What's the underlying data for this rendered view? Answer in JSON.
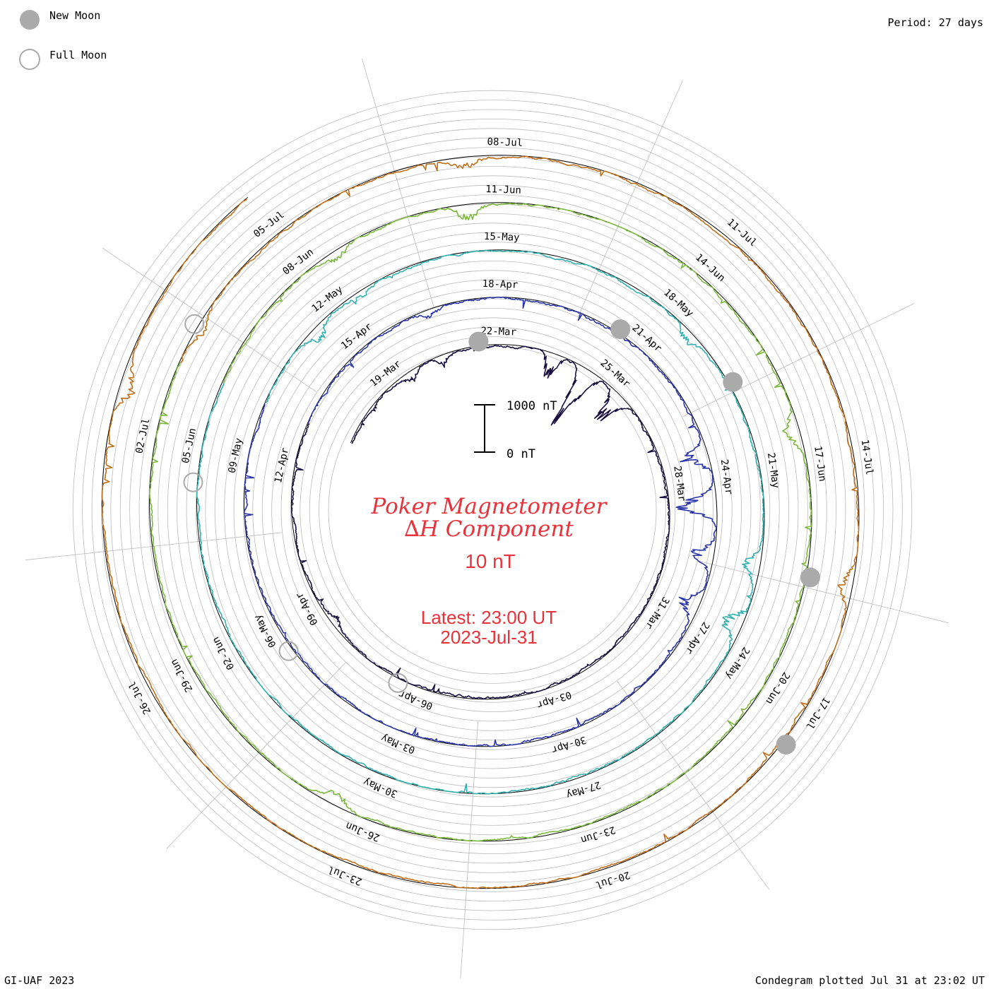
{
  "legend": {
    "new_moon_label": "New Moon",
    "full_moon_label": "Full Moon"
  },
  "period_label": "Period: 27 days",
  "title": {
    "line1": "Poker Magnetometer",
    "line2": "∆H Component",
    "resolution": "10 nT",
    "latest_line1": "Latest: 23:00 UT",
    "latest_line2": "2023-Jul-31"
  },
  "scale_bar": {
    "top_label": "1000 nT",
    "bottom_label": "0 nT"
  },
  "footer": {
    "left": "GI-UAF 2023",
    "right": "Condegram plotted Jul 31 at 23:02 UT"
  },
  "colors": {
    "text_red": "#e8323c",
    "grid": "#bbbbbb",
    "baseline": "#000000",
    "moon_fill": "#aaaaaa",
    "moon_stroke": "#aaaaaa"
  },
  "chart_data": {
    "type": "line",
    "period_days": 27,
    "start_date": "2023-03-17",
    "end_date": "2023-07-31",
    "series": [
      {
        "start": "2023-03-17",
        "days": 27,
        "color": "#1a1040"
      },
      {
        "start": "2023-04-13",
        "days": 27,
        "color": "#2a35a8"
      },
      {
        "start": "2023-05-10",
        "days": 27,
        "color": "#2fb0b0"
      },
      {
        "start": "2023-06-06",
        "days": 27,
        "color": "#7ab83a"
      },
      {
        "start": "2023-07-03",
        "days": 29,
        "color": "#c06e18"
      }
    ],
    "date_labels": [
      {
        "date": "2023-03-19",
        "text": "19-Mar"
      },
      {
        "date": "2023-03-22",
        "text": "22-Mar"
      },
      {
        "date": "2023-03-25",
        "text": "25-Mar"
      },
      {
        "date": "2023-03-28",
        "text": "28-Mar"
      },
      {
        "date": "2023-03-31",
        "text": "31-Mar"
      },
      {
        "date": "2023-04-03",
        "text": "03-Apr"
      },
      {
        "date": "2023-04-06",
        "text": "06-Apr"
      },
      {
        "date": "2023-04-09",
        "text": "09-Apr"
      },
      {
        "date": "2023-04-12",
        "text": "12-Apr"
      },
      {
        "date": "2023-04-15",
        "text": "15-Apr"
      },
      {
        "date": "2023-04-18",
        "text": "18-Apr"
      },
      {
        "date": "2023-04-21",
        "text": "21-Apr"
      },
      {
        "date": "2023-04-24",
        "text": "24-Apr"
      },
      {
        "date": "2023-04-27",
        "text": "27-Apr"
      },
      {
        "date": "2023-04-30",
        "text": "30-Apr"
      },
      {
        "date": "2023-05-03",
        "text": "03-May"
      },
      {
        "date": "2023-05-06",
        "text": "06-May"
      },
      {
        "date": "2023-05-09",
        "text": "09-May"
      },
      {
        "date": "2023-05-12",
        "text": "12-May"
      },
      {
        "date": "2023-05-15",
        "text": "15-May"
      },
      {
        "date": "2023-05-18",
        "text": "18-May"
      },
      {
        "date": "2023-05-21",
        "text": "21-May"
      },
      {
        "date": "2023-05-24",
        "text": "24-May"
      },
      {
        "date": "2023-05-27",
        "text": "27-May"
      },
      {
        "date": "2023-05-30",
        "text": "30-May"
      },
      {
        "date": "2023-06-02",
        "text": "02-Jun"
      },
      {
        "date": "2023-06-05",
        "text": "05-Jun"
      },
      {
        "date": "2023-06-08",
        "text": "08-Jun"
      },
      {
        "date": "2023-06-11",
        "text": "11-Jun"
      },
      {
        "date": "2023-06-14",
        "text": "14-Jun"
      },
      {
        "date": "2023-06-17",
        "text": "17-Jun"
      },
      {
        "date": "2023-06-20",
        "text": "20-Jun"
      },
      {
        "date": "2023-06-23",
        "text": "23-Jun"
      },
      {
        "date": "2023-06-26",
        "text": "26-Jun"
      },
      {
        "date": "2023-06-29",
        "text": "29-Jun"
      },
      {
        "date": "2023-07-02",
        "text": "02-Jul"
      },
      {
        "date": "2023-07-05",
        "text": "05-Jul"
      },
      {
        "date": "2023-07-08",
        "text": "08-Jul"
      },
      {
        "date": "2023-07-11",
        "text": "11-Jul"
      },
      {
        "date": "2023-07-14",
        "text": "14-Jul"
      },
      {
        "date": "2023-07-17",
        "text": "17-Jul"
      },
      {
        "date": "2023-07-20",
        "text": "20-Jul"
      },
      {
        "date": "2023-07-23",
        "text": "23-Jul"
      },
      {
        "date": "2023-07-26",
        "text": "26-Jul"
      }
    ],
    "new_moons": [
      "2023-03-21",
      "2023-04-20",
      "2023-05-19",
      "2023-06-18",
      "2023-07-17"
    ],
    "full_moons": [
      "2023-04-06",
      "2023-05-05",
      "2023-06-04",
      "2023-07-03"
    ],
    "disturbances_nT": [
      {
        "date": "2023-03-19",
        "value": 160
      },
      {
        "date": "2023-03-20",
        "value": 140
      },
      {
        "date": "2023-03-23",
        "value": 420
      },
      {
        "date": "2023-03-24",
        "value": 1050
      },
      {
        "date": "2023-03-25",
        "value": 600
      },
      {
        "date": "2023-04-08",
        "value": 120
      },
      {
        "date": "2023-04-16",
        "value": 110
      },
      {
        "date": "2023-04-23",
        "value": 420
      },
      {
        "date": "2023-04-24",
        "value": 720
      },
      {
        "date": "2023-04-25",
        "value": 360
      },
      {
        "date": "2023-04-26",
        "value": 320
      },
      {
        "date": "2023-05-11",
        "value": 200
      },
      {
        "date": "2023-05-12",
        "value": 150
      },
      {
        "date": "2023-05-18",
        "value": 180
      },
      {
        "date": "2023-05-22",
        "value": 250
      },
      {
        "date": "2023-05-23",
        "value": 330
      },
      {
        "date": "2023-06-08",
        "value": 140
      },
      {
        "date": "2023-06-10",
        "value": 260
      },
      {
        "date": "2023-06-16",
        "value": 240
      },
      {
        "date": "2023-06-26",
        "value": 180
      },
      {
        "date": "2023-07-03",
        "value": 120
      },
      {
        "date": "2023-07-07",
        "value": 200
      },
      {
        "date": "2023-07-15",
        "value": 200
      },
      {
        "date": "2023-07-29",
        "value": 260
      }
    ]
  }
}
